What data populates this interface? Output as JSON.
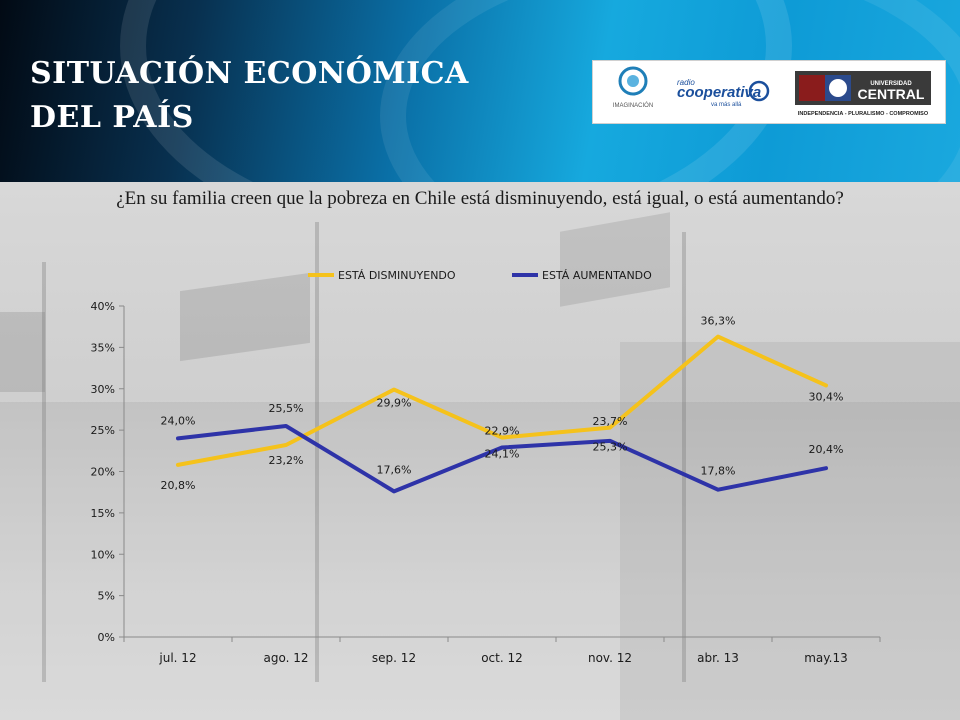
{
  "header": {
    "title": "SITUACIÓN ECONÓMICA DEL PAÍS"
  },
  "logos": {
    "imaginacion": "IMAGINACIÓN",
    "cooperativa": "cooperativa",
    "cooperativa_small": "radio",
    "cooperativa_tag": "va más allá",
    "universidad_small": "UNIVERSIDAD",
    "universidad_big": "CENTRAL",
    "universidad_motto": "INDEPENDENCIA - PLURALISMO - COMPROMISO"
  },
  "question": "¿En su familia creen que la pobreza en Chile está disminuyendo, está igual, o está aumentando?",
  "chart_data": {
    "type": "line",
    "categories": [
      "jul. 12",
      "ago. 12",
      "sep. 12",
      "oct. 12",
      "nov. 12",
      "abr. 13",
      "may.13"
    ],
    "ylim": [
      0,
      40
    ],
    "yticks": [
      "0%",
      "5%",
      "10%",
      "15%",
      "20%",
      "25%",
      "30%",
      "35%",
      "40%"
    ],
    "legend_position": "top",
    "grid": false,
    "series": [
      {
        "name": "ESTÁ DISMINUYENDO",
        "color": "#f5c21b",
        "values": [
          20.8,
          23.2,
          29.9,
          24.1,
          25.3,
          36.3,
          30.4
        ],
        "labels": [
          "20,8%",
          "23,2%",
          "29,9%",
          "24,1%",
          "25,3%",
          "36,3%",
          "30,4%"
        ]
      },
      {
        "name": "ESTÁ AUMENTANDO",
        "color": "#2e33a8",
        "values": [
          24.0,
          25.5,
          17.6,
          22.9,
          23.7,
          17.8,
          20.4
        ],
        "labels": [
          "24,0%",
          "25,5%",
          "17,6%",
          "22,9%",
          "23,7%",
          "17,8%",
          "20,4%"
        ]
      }
    ]
  }
}
